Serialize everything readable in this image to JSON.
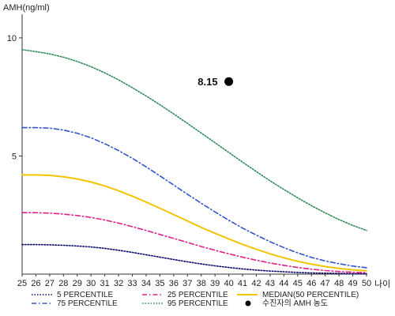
{
  "chart_data": {
    "type": "line",
    "ylabel": "AMH(ng/ml)",
    "xlabel": "나이",
    "xlim": [
      25,
      50
    ],
    "ylim": [
      0,
      11
    ],
    "x_ticks": [
      25,
      26,
      27,
      28,
      29,
      30,
      31,
      32,
      33,
      34,
      35,
      36,
      37,
      38,
      39,
      40,
      41,
      42,
      43,
      44,
      45,
      46,
      47,
      48,
      49,
      50
    ],
    "y_ticks": [
      5,
      10
    ],
    "grid": false,
    "x": [
      25,
      26,
      27,
      28,
      29,
      30,
      31,
      32,
      33,
      34,
      35,
      36,
      37,
      38,
      39,
      40,
      41,
      42,
      43,
      44,
      45,
      46,
      47,
      48,
      49,
      50
    ],
    "series": [
      {
        "name": "5 PERCENTILE",
        "color": "#0a0a6e",
        "dash": "dotted",
        "values": [
          1.25,
          1.25,
          1.24,
          1.22,
          1.19,
          1.15,
          1.09,
          1.01,
          0.92,
          0.82,
          0.72,
          0.62,
          0.52,
          0.43,
          0.35,
          0.28,
          0.22,
          0.17,
          0.13,
          0.1,
          0.07,
          0.05,
          0.04,
          0.03,
          0.02,
          0.02
        ]
      },
      {
        "name": "25 PERCENTILE",
        "color": "#e0218a",
        "dash": "dashdot",
        "values": [
          2.6,
          2.6,
          2.58,
          2.54,
          2.48,
          2.4,
          2.29,
          2.16,
          2.01,
          1.85,
          1.68,
          1.51,
          1.34,
          1.17,
          1.01,
          0.86,
          0.72,
          0.59,
          0.47,
          0.37,
          0.28,
          0.21,
          0.15,
          0.11,
          0.08,
          0.06
        ]
      },
      {
        "name": "MEDIAN(50 PERCENTILE)",
        "color": "#f2c500",
        "dash": "solid",
        "values": [
          4.2,
          4.2,
          4.18,
          4.12,
          4.03,
          3.9,
          3.73,
          3.53,
          3.3,
          3.05,
          2.79,
          2.52,
          2.25,
          1.98,
          1.73,
          1.49,
          1.26,
          1.05,
          0.86,
          0.69,
          0.54,
          0.42,
          0.32,
          0.24,
          0.18,
          0.14
        ]
      },
      {
        "name": "75 PERCENTILE",
        "color": "#3355cc",
        "dash": "dashdot",
        "values": [
          6.2,
          6.2,
          6.18,
          6.1,
          5.96,
          5.77,
          5.52,
          5.23,
          4.9,
          4.54,
          4.16,
          3.77,
          3.38,
          3.0,
          2.63,
          2.28,
          1.95,
          1.65,
          1.37,
          1.12,
          0.9,
          0.71,
          0.56,
          0.44,
          0.34,
          0.27
        ]
      },
      {
        "name": "95 PERCENTILE",
        "color": "#2e8b57",
        "dash": "dotted",
        "values": [
          9.5,
          9.42,
          9.32,
          9.18,
          9.0,
          8.78,
          8.52,
          8.22,
          7.89,
          7.54,
          7.17,
          6.78,
          6.38,
          5.97,
          5.56,
          5.15,
          4.74,
          4.34,
          3.95,
          3.58,
          3.23,
          2.9,
          2.59,
          2.31,
          2.06,
          1.85
        ]
      }
    ],
    "point": {
      "name": "수진자의 AMH 농도",
      "x": 40,
      "y": 8.15,
      "label": "8.15",
      "color": "#000000"
    },
    "legend_position": "bottom",
    "legend": [
      {
        "series": "5 PERCENTILE",
        "label": "5 PERCENTILE"
      },
      {
        "series": "25 PERCENTILE",
        "label": "25 PERCENTILE"
      },
      {
        "series": "MEDIAN(50 PERCENTILE)",
        "label": "MEDIAN(50 PERCENTILE)"
      },
      {
        "series": "75 PERCENTILE",
        "label": "75 PERCENTILE"
      },
      {
        "series": "95 PERCENTILE",
        "label": "95 PERCENTILE"
      },
      {
        "series": "point",
        "label": "수진자의 AMH 농도"
      }
    ]
  }
}
